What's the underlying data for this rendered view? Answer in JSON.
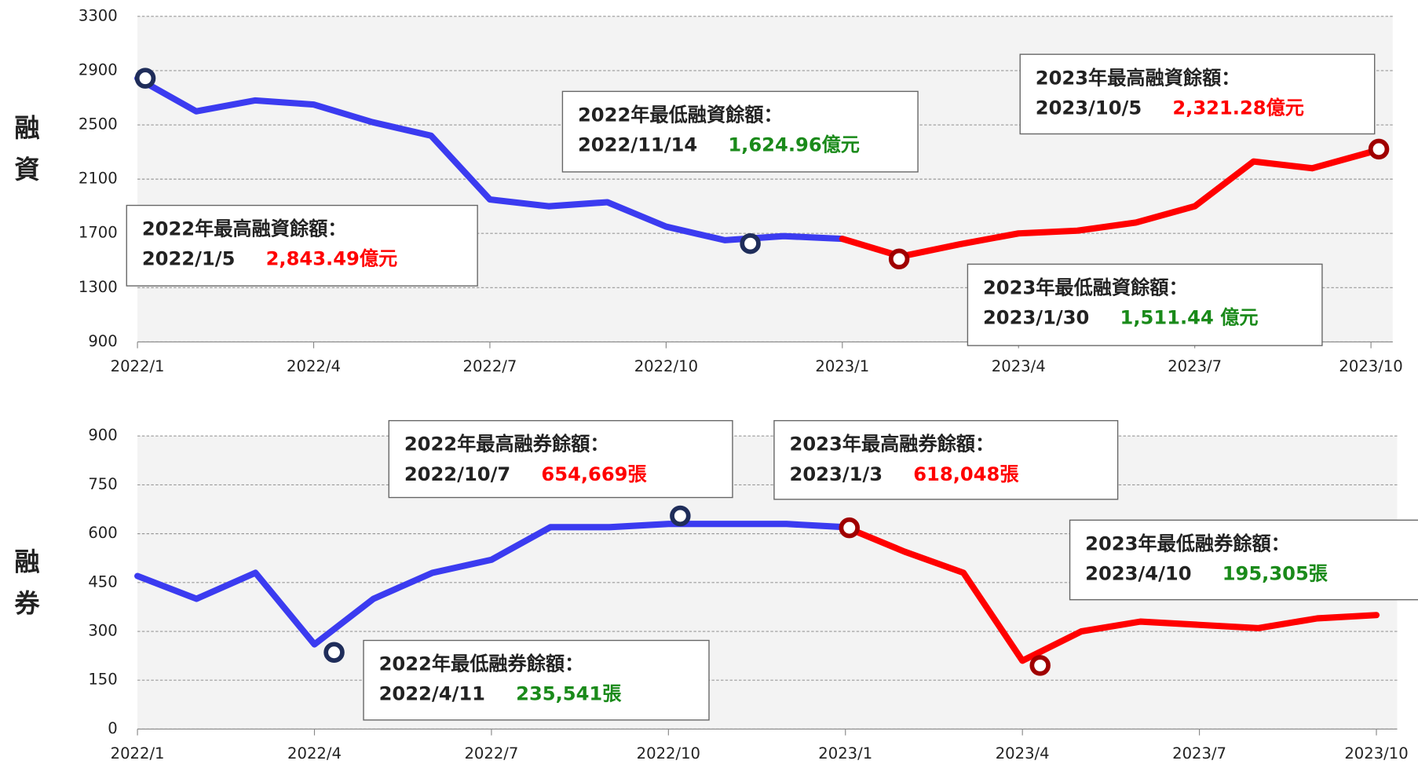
{
  "chart_data": [
    {
      "type": "line",
      "ylabel": "融資",
      "x": [
        "2022/1",
        "2022/2",
        "2022/3",
        "2022/4",
        "2022/5",
        "2022/6",
        "2022/7",
        "2022/8",
        "2022/9",
        "2022/10",
        "2022/11",
        "2022/12",
        "2023/1",
        "2023/2",
        "2023/3",
        "2023/4",
        "2023/5",
        "2023/6",
        "2023/7",
        "2023/8",
        "2023/9",
        "2023/10"
      ],
      "series": [
        {
          "color": "#3b3bf0",
          "values": [
            2843,
            2600,
            2680,
            2650,
            2520,
            2420,
            1950,
            1900,
            1930,
            1750,
            1650,
            1680,
            1660,
            null,
            null,
            null,
            null,
            null,
            null,
            null,
            null,
            null
          ]
        },
        {
          "color": "#ff0000",
          "values": [
            null,
            null,
            null,
            null,
            null,
            null,
            null,
            null,
            null,
            null,
            null,
            null,
            1660,
            1530,
            1620,
            1700,
            1720,
            1780,
            1900,
            2230,
            2180,
            2300
          ]
        }
      ],
      "ylim": [
        900,
        3300
      ],
      "yticks": [
        900,
        1300,
        1700,
        2100,
        2500,
        2900,
        3300
      ],
      "xticks": [
        "2022/1",
        "2022/4",
        "2022/7",
        "2022/10",
        "2023/1",
        "2023/4",
        "2023/7",
        "2023/10"
      ],
      "grid": true,
      "annotations": [
        {
          "title": "2022年最高融資餘額：",
          "date": "2022/1/5",
          "amount": "2,843.49億元",
          "value": 2843.49,
          "color": "#ff0000",
          "marker": "#1f2d5a"
        },
        {
          "title": "2022年最低融資餘額：",
          "date": "2022/11/14",
          "amount": "1,624.96億元",
          "value": 1624.96,
          "color": "#1a8a1a",
          "marker": "#1f2d5a"
        },
        {
          "title": "2023年最低融資餘額：",
          "date": "2023/1/30",
          "amount": "1,511.44 億元",
          "value": 1511.44,
          "color": "#1a8a1a",
          "marker": "#a00000"
        },
        {
          "title": "2023年最高融資餘額：",
          "date": "2023/10/5",
          "amount": "2,321.28億元",
          "value": 2321.28,
          "color": "#ff0000",
          "marker": "#a00000"
        }
      ]
    },
    {
      "type": "line",
      "ylabel": "融券",
      "x": [
        "2022/1",
        "2022/2",
        "2022/3",
        "2022/4",
        "2022/5",
        "2022/6",
        "2022/7",
        "2022/8",
        "2022/9",
        "2022/10",
        "2022/11",
        "2022/12",
        "2023/1",
        "2023/2",
        "2023/3",
        "2023/4",
        "2023/5",
        "2023/6",
        "2023/7",
        "2023/8",
        "2023/9",
        "2023/10"
      ],
      "series": [
        {
          "color": "#3b3bf0",
          "values": [
            470,
            400,
            480,
            260,
            400,
            480,
            520,
            620,
            620,
            630,
            630,
            630,
            620,
            null,
            null,
            null,
            null,
            null,
            null,
            null,
            null,
            null
          ]
        },
        {
          "color": "#ff0000",
          "values": [
            null,
            null,
            null,
            null,
            null,
            null,
            null,
            null,
            null,
            null,
            null,
            null,
            620,
            545,
            480,
            210,
            300,
            330,
            320,
            310,
            340,
            350
          ]
        }
      ],
      "ylim": [
        0,
        900
      ],
      "yticks": [
        0,
        150,
        300,
        450,
        600,
        750,
        900
      ],
      "xticks": [
        "2022/1",
        "2022/4",
        "2022/7",
        "2022/10",
        "2023/1",
        "2023/4",
        "2023/7",
        "2023/10"
      ],
      "grid": true,
      "annotations": [
        {
          "title": "2022年最低融券餘額：",
          "date": "2022/4/11",
          "amount": "235,541張",
          "value": 235.541,
          "color": "#1a8a1a",
          "marker": "#1f2d5a"
        },
        {
          "title": "2022年最高融券餘額：",
          "date": "2022/10/7",
          "amount": "654,669張",
          "value": 654.669,
          "color": "#ff0000",
          "marker": "#1f2d5a"
        },
        {
          "title": "2023年最高融券餘額：",
          "date": "2023/1/3",
          "amount": "618,048張",
          "value": 618.048,
          "color": "#ff0000",
          "marker": "#a00000"
        },
        {
          "title": "2023年最低融券餘額：",
          "date": "2023/4/10",
          "amount": "195,305張",
          "value": 195.305,
          "color": "#1a8a1a",
          "marker": "#a00000"
        }
      ]
    }
  ]
}
